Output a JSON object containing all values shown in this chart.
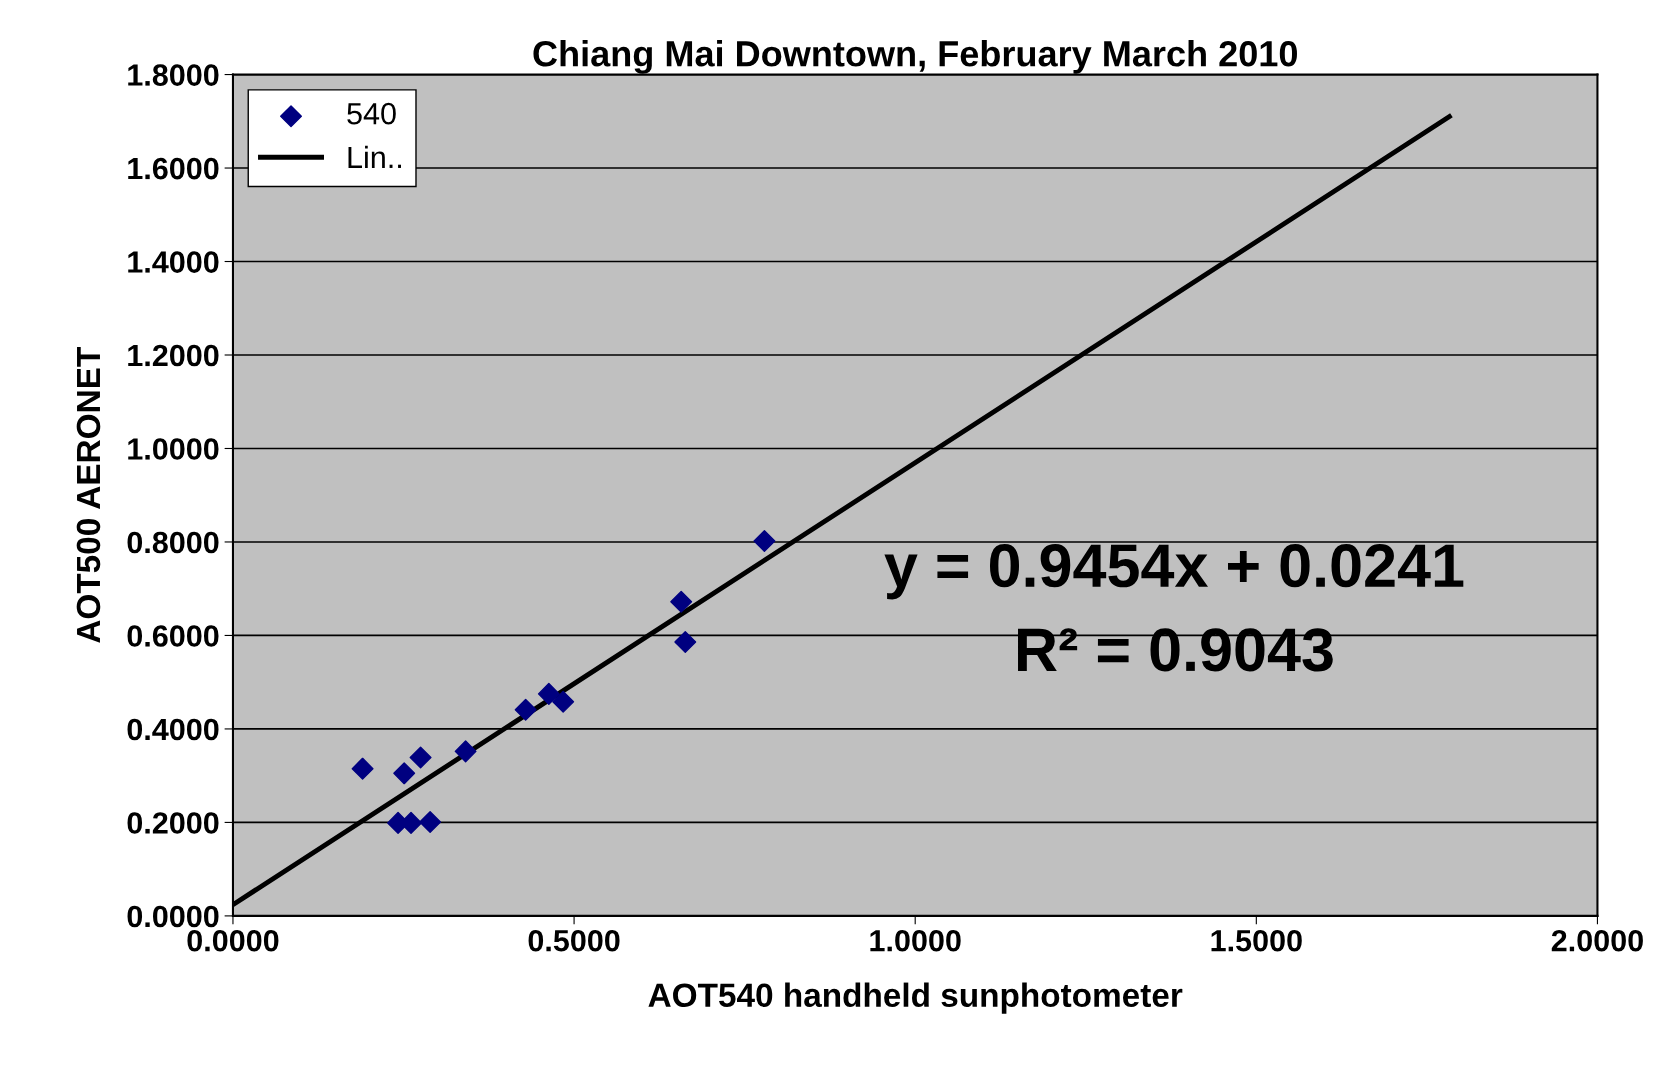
{
  "chart_data": {
    "type": "scatter",
    "title": "Chiang Mai Downtown, February March 2010",
    "xlabel": "AOT540 handheld sunphotometer",
    "ylabel": "AOT500 AERONET",
    "xlim": [
      0,
      2
    ],
    "xticks": [
      {
        "value": 0,
        "label": "0.0000"
      },
      {
        "value": 0.5,
        "label": "0.5000"
      },
      {
        "value": 1,
        "label": "1.0000"
      },
      {
        "value": 1.5,
        "label": "1.5000"
      },
      {
        "value": 2,
        "label": "2.0000"
      }
    ],
    "ylim": [
      0,
      1.8
    ],
    "yticks": [
      {
        "value": 0,
        "label": "0.0000"
      },
      {
        "value": 0.2,
        "label": "0.2000"
      },
      {
        "value": 0.4,
        "label": "0.4000"
      },
      {
        "value": 0.6,
        "label": "0.6000"
      },
      {
        "value": 0.8,
        "label": "0.8000"
      },
      {
        "value": 1.0,
        "label": "1.0000"
      },
      {
        "value": 1.2,
        "label": "1.2000"
      },
      {
        "value": 1.4,
        "label": "1.4000"
      },
      {
        "value": 1.6,
        "label": "1.6000"
      },
      {
        "value": 1.8,
        "label": "1.8000"
      }
    ],
    "grid": "y",
    "legend": "top left",
    "series": [
      {
        "name": "540",
        "marker": "diamond",
        "color": "#000080",
        "x": [
          0.19,
          0.251,
          0.275,
          0.242,
          0.261,
          0.289,
          0.341,
          0.429,
          0.463,
          0.484,
          0.657,
          0.663,
          0.779
        ],
        "values": [
          0.315,
          0.305,
          0.339,
          0.199,
          0.199,
          0.201,
          0.352,
          0.441,
          0.475,
          0.458,
          0.672,
          0.586,
          0.802
        ]
      },
      {
        "name": "Lin..",
        "type": "line",
        "marker": "none",
        "line_style": "solid",
        "color": "#000000",
        "x": [
          0,
          1.783
        ],
        "values": [
          0.024,
          1.71
        ]
      }
    ],
    "annotations": [
      "y = 0.9454x + 0.0241",
      "R² = 0.9043"
    ]
  }
}
